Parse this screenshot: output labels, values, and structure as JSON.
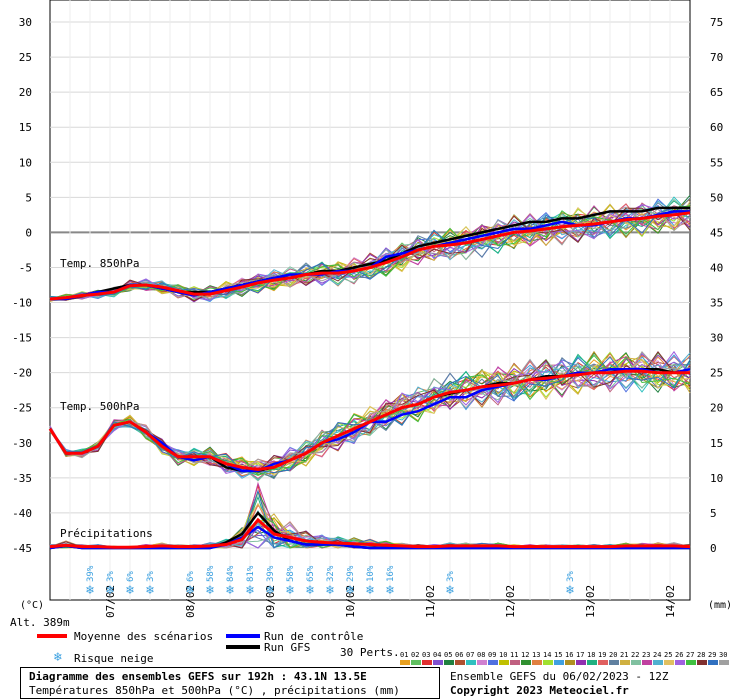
{
  "chart_data": {
    "type": "line",
    "title": "Diagramme des ensembles GEFS sur 192h : 43.1N 13.5E",
    "subtitle": "Températures 850hPa et 500hPa (°C) , précipitations (mm)",
    "left_axis": {
      "unit": "(°C)",
      "ticks": [
        30,
        25,
        20,
        15,
        10,
        5,
        0,
        -5,
        -10,
        -15,
        -20,
        -25,
        -30,
        -35,
        -40,
        -45
      ],
      "range": [
        -45,
        30
      ]
    },
    "right_axis": {
      "unit": "(mm)",
      "ticks": [
        75,
        70,
        65,
        60,
        55,
        50,
        45,
        40,
        35,
        30,
        25,
        20,
        15,
        10,
        5,
        0
      ],
      "range": [
        0,
        75
      ]
    },
    "x_axis": {
      "range_hours": [
        0,
        192
      ],
      "date_labels": [
        {
          "label": "07/02",
          "hour": 18
        },
        {
          "label": "08/02",
          "hour": 42
        },
        {
          "label": "09/02",
          "hour": 66
        },
        {
          "label": "10/02",
          "hour": 90
        },
        {
          "label": "11/02",
          "hour": 114
        },
        {
          "label": "12/02",
          "hour": 138
        },
        {
          "label": "13/02",
          "hour": 162
        },
        {
          "label": "14/02",
          "hour": 186
        }
      ]
    },
    "panel_labels": {
      "t850": "Temp. 850hPa",
      "t500": "Temp. 500hPa",
      "precip": "Précipitations"
    },
    "altitude": "Alt. 389m",
    "grid": true,
    "snow_risk": [
      {
        "hour": 12,
        "pct": "39%"
      },
      {
        "hour": 18,
        "pct": "3%"
      },
      {
        "hour": 24,
        "pct": "6%"
      },
      {
        "hour": 30,
        "pct": "3%"
      },
      {
        "hour": 42,
        "pct": "6%"
      },
      {
        "hour": 48,
        "pct": "58%"
      },
      {
        "hour": 54,
        "pct": "84%"
      },
      {
        "hour": 60,
        "pct": "81%"
      },
      {
        "hour": 66,
        "pct": "39%"
      },
      {
        "hour": 72,
        "pct": "58%"
      },
      {
        "hour": 78,
        "pct": "65%"
      },
      {
        "hour": 84,
        "pct": "32%"
      },
      {
        "hour": 90,
        "pct": "29%"
      },
      {
        "hour": 96,
        "pct": "10%"
      },
      {
        "hour": 102,
        "pct": "16%"
      },
      {
        "hour": 120,
        "pct": "3%"
      },
      {
        "hour": 156,
        "pct": "3%"
      }
    ],
    "series": [
      {
        "name": "Moyenne des scénarios",
        "color": "#ff0000",
        "t850": [
          -9.5,
          -9.3,
          -9.0,
          -8.8,
          -8.5,
          -7.6,
          -7.5,
          -7.8,
          -8.3,
          -8.8,
          -8.8,
          -8.3,
          -7.8,
          -7.2,
          -6.8,
          -6.5,
          -6.0,
          -5.8,
          -5.8,
          -5.5,
          -5.0,
          -4.3,
          -3.5,
          -2.5,
          -2.0,
          -1.8,
          -1.5,
          -1.0,
          -0.5,
          0.0,
          0.2,
          0.5,
          0.8,
          1.0,
          1.2,
          1.5,
          1.8,
          2.0,
          2.3,
          2.5,
          2.8
        ],
        "t500": [
          -28.0,
          -31.5,
          -31.5,
          -30.5,
          -27.5,
          -27.0,
          -28.5,
          -30.5,
          -32.0,
          -32.0,
          -32.0,
          -33.0,
          -33.5,
          -33.8,
          -33.5,
          -32.5,
          -31.5,
          -30.0,
          -29.0,
          -28.0,
          -27.0,
          -26.0,
          -25.0,
          -24.5,
          -23.5,
          -22.8,
          -22.5,
          -22.0,
          -21.8,
          -21.5,
          -21.0,
          -20.8,
          -20.5,
          -20.3,
          -20.0,
          -20.0,
          -19.8,
          -19.8,
          -20.0,
          -20.0,
          -20.0
        ],
        "precip": [
          0.2,
          0.4,
          0.2,
          0.2,
          0.1,
          0.1,
          0.2,
          0.3,
          0.2,
          0.2,
          0.3,
          0.5,
          1.2,
          4.0,
          2.0,
          1.5,
          1.0,
          0.8,
          0.7,
          0.6,
          0.5,
          0.4,
          0.3,
          0.2,
          0.2,
          0.3,
          0.3,
          0.3,
          0.3,
          0.2,
          0.2,
          0.2,
          0.2,
          0.2,
          0.2,
          0.2,
          0.3,
          0.3,
          0.3,
          0.3,
          0.2
        ]
      },
      {
        "name": "Run de contrôle",
        "color": "#0000ff",
        "t850": [
          -9.5,
          -9.5,
          -9.0,
          -8.5,
          -8.5,
          -7.5,
          -7.5,
          -8.0,
          -8.5,
          -9.0,
          -8.5,
          -8.0,
          -7.5,
          -7.0,
          -6.5,
          -6.0,
          -6.0,
          -6.0,
          -5.5,
          -5.5,
          -5.0,
          -3.5,
          -3.0,
          -2.5,
          -2.0,
          -1.5,
          -1.0,
          -0.5,
          0.0,
          0.5,
          0.5,
          1.0,
          1.5,
          1.0,
          1.0,
          1.5,
          2.0,
          2.0,
          2.5,
          3.0,
          3.0
        ],
        "t500": [
          -28.0,
          -31.5,
          -31.5,
          -30.5,
          -27.5,
          -27.0,
          -28.5,
          -30.0,
          -32.0,
          -32.5,
          -32.0,
          -33.0,
          -34.0,
          -34.0,
          -33.0,
          -32.5,
          -31.5,
          -30.0,
          -29.5,
          -28.5,
          -27.0,
          -27.0,
          -26.0,
          -25.5,
          -24.5,
          -23.5,
          -23.5,
          -22.5,
          -22.0,
          -21.5,
          -21.0,
          -21.0,
          -20.5,
          -20.0,
          -20.0,
          -19.5,
          -19.5,
          -19.5,
          -20.0,
          -20.0,
          -19.5
        ],
        "precip": [
          0.0,
          0.3,
          0.0,
          0.0,
          0.0,
          0.0,
          0.0,
          0.0,
          0.0,
          0.0,
          0.0,
          0.5,
          1.5,
          3.0,
          1.5,
          1.0,
          0.5,
          0.5,
          0.5,
          0.2,
          0.0,
          0.0,
          0.0,
          0.0,
          0.0,
          0.0,
          0.0,
          0.0,
          0.0,
          0.0,
          0.0,
          0.0,
          0.0,
          0.0,
          0.0,
          0.0,
          0.0,
          0.0,
          0.0,
          0.0,
          0.0
        ]
      },
      {
        "name": "Run GFS",
        "color": "#000000",
        "t850": [
          -9.5,
          -9.5,
          -9.0,
          -8.5,
          -8.0,
          -7.5,
          -7.5,
          -8.0,
          -8.5,
          -8.5,
          -8.5,
          -8.0,
          -7.5,
          -7.0,
          -6.5,
          -6.5,
          -6.0,
          -5.5,
          -5.5,
          -5.0,
          -4.5,
          -4.0,
          -3.0,
          -2.0,
          -1.5,
          -1.0,
          -0.5,
          0.0,
          0.5,
          1.0,
          1.5,
          1.5,
          2.0,
          2.0,
          2.5,
          3.0,
          3.0,
          3.0,
          3.5,
          3.5,
          3.5
        ],
        "t500": [
          -28.0,
          -31.5,
          -31.5,
          -30.5,
          -27.5,
          -27.0,
          -28.5,
          -30.5,
          -32.0,
          -32.0,
          -32.0,
          -33.5,
          -34.0,
          -34.0,
          -33.5,
          -32.5,
          -31.5,
          -30.0,
          -29.0,
          -28.0,
          -27.0,
          -26.0,
          -25.0,
          -24.5,
          -23.5,
          -23.0,
          -22.5,
          -22.0,
          -21.5,
          -21.5,
          -21.0,
          -20.5,
          -20.5,
          -20.0,
          -20.0,
          -20.0,
          -19.5,
          -19.5,
          -19.5,
          -20.0,
          -20.0
        ],
        "precip": [
          0.0,
          0.3,
          0.0,
          0.0,
          0.0,
          0.0,
          0.0,
          0.0,
          0.0,
          0.0,
          0.0,
          0.8,
          2.0,
          5.0,
          2.5,
          1.0,
          0.5,
          0.5,
          0.5,
          0.2,
          0.0,
          0.0,
          0.0,
          0.0,
          0.0,
          0.0,
          0.0,
          0.0,
          0.0,
          0.0,
          0.0,
          0.0,
          0.0,
          0.0,
          0.0,
          0.0,
          0.0,
          0.0,
          0.0,
          0.0,
          0.0
        ]
      }
    ],
    "perturbations": {
      "label": "30 Perts.",
      "ids": [
        "01",
        "02",
        "03",
        "04",
        "05",
        "06",
        "07",
        "08",
        "09",
        "10",
        "11",
        "12",
        "13",
        "14",
        "15",
        "16",
        "17",
        "18",
        "19",
        "20",
        "21",
        "22",
        "23",
        "24",
        "25",
        "26",
        "27",
        "28",
        "29",
        "30"
      ],
      "colors": [
        "#e8a020",
        "#60c060",
        "#e03030",
        "#8050d0",
        "#208040",
        "#b05030",
        "#30c0c0",
        "#d080d0",
        "#5070e0",
        "#c0c000",
        "#c06080",
        "#309030",
        "#e08040",
        "#a0e030",
        "#40a0e0",
        "#b09020",
        "#9030b0",
        "#20b080",
        "#e06060",
        "#6080a0",
        "#d0b040",
        "#80c0a0",
        "#c040a0",
        "#50b0d0",
        "#e0c060",
        "#a060e0",
        "#40c040",
        "#803030",
        "#3070c0",
        "#a0a0a0"
      ]
    },
    "legend": {
      "mean": "Moyenne des scénarios",
      "control": "Run de contrôle",
      "gfs": "Run GFS",
      "snow": "Risque neige"
    },
    "footer": {
      "line1": "Diagramme des ensembles GEFS sur 192h : 43.1N 13.5E",
      "line2": "Températures 850hPa et 500hPa (°C) , précipitations (mm)",
      "run": "Ensemble GEFS du 06/02/2023 - 12Z",
      "copyright": "Copyright 2023 Meteociel.fr"
    }
  }
}
